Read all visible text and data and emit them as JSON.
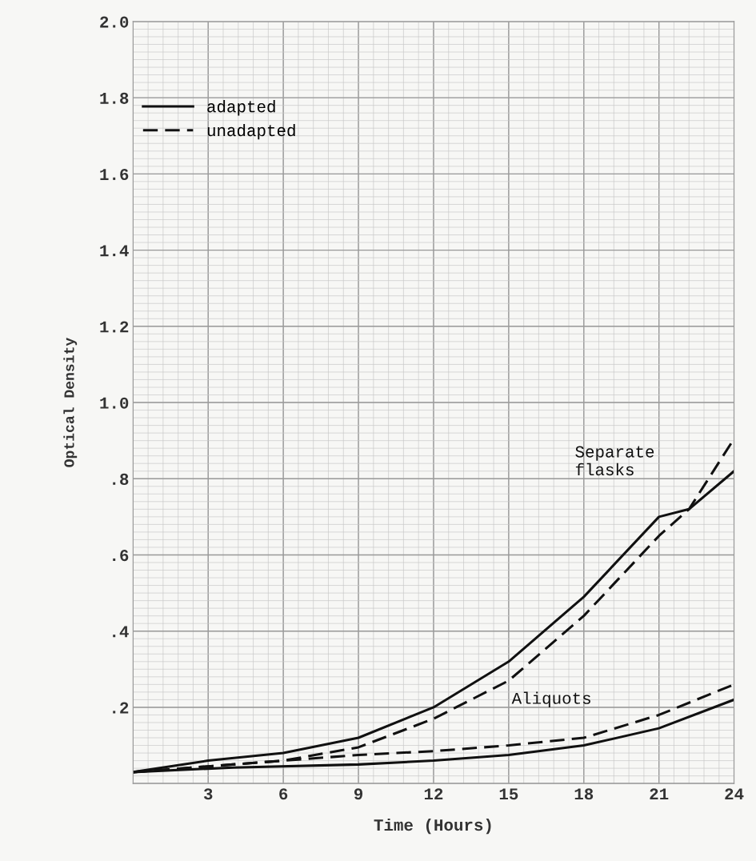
{
  "chart_data": {
    "type": "line",
    "xlabel": "Time (Hours)",
    "ylabel": "Optical Density",
    "xlim": [
      0,
      24
    ],
    "ylim": [
      0,
      2.0
    ],
    "xticks": [
      {
        "value": 0,
        "label": null
      },
      3,
      6,
      9,
      12,
      15,
      18,
      21,
      24
    ],
    "yticks": [
      {
        "value": 0,
        "label": null
      },
      {
        "value": 0.2,
        "label": ".2"
      },
      {
        "value": 0.4,
        "label": ".4"
      },
      {
        "value": 0.6,
        "label": ".6"
      },
      {
        "value": 0.8,
        "label": ".8"
      },
      {
        "value": 1.0,
        "label": "1.0"
      },
      {
        "value": 1.2,
        "label": "1.2"
      },
      {
        "value": 1.4,
        "label": "1.4"
      },
      {
        "value": 1.6,
        "label": "1.6"
      },
      {
        "value": 1.8,
        "label": "1.8"
      },
      {
        "value": 2.0,
        "label": "2.0"
      }
    ],
    "grid": true,
    "legend": "top left",
    "marker": "none",
    "series": [
      {
        "name": "adapted",
        "color": "#111111",
        "line_style": "solid",
        "x": [
          0,
          3,
          6,
          9,
          12,
          15,
          18,
          21,
          22.2,
          24
        ],
        "values": [
          0.03,
          0.06,
          0.08,
          0.12,
          0.2,
          0.32,
          0.49,
          0.7,
          0.72,
          0.82
        ]
      },
      {
        "name": "unadapted",
        "color": "#111111",
        "line_style": "dashed",
        "x": [
          0,
          3,
          6,
          9,
          12,
          15,
          18,
          21,
          22.2,
          24
        ],
        "values": [
          0.03,
          0.045,
          0.06,
          0.095,
          0.17,
          0.27,
          0.44,
          0.65,
          0.72,
          0.905
        ]
      },
      {
        "color": "#111111",
        "line_style": "solid",
        "x": [
          0,
          4,
          9,
          12,
          15,
          18,
          21,
          24
        ],
        "values": [
          0.03,
          0.042,
          0.05,
          0.06,
          0.075,
          0.1,
          0.145,
          0.22
        ]
      },
      {
        "color": "#111111",
        "line_style": "dashed",
        "x": [
          0,
          3,
          6,
          9,
          12,
          15,
          18,
          21,
          24
        ],
        "values": [
          0.03,
          0.045,
          0.06,
          0.075,
          0.085,
          0.1,
          0.12,
          0.18,
          0.26
        ]
      }
    ],
    "annotations": [
      "Separate\nflasks",
      "Aliquots"
    ]
  }
}
